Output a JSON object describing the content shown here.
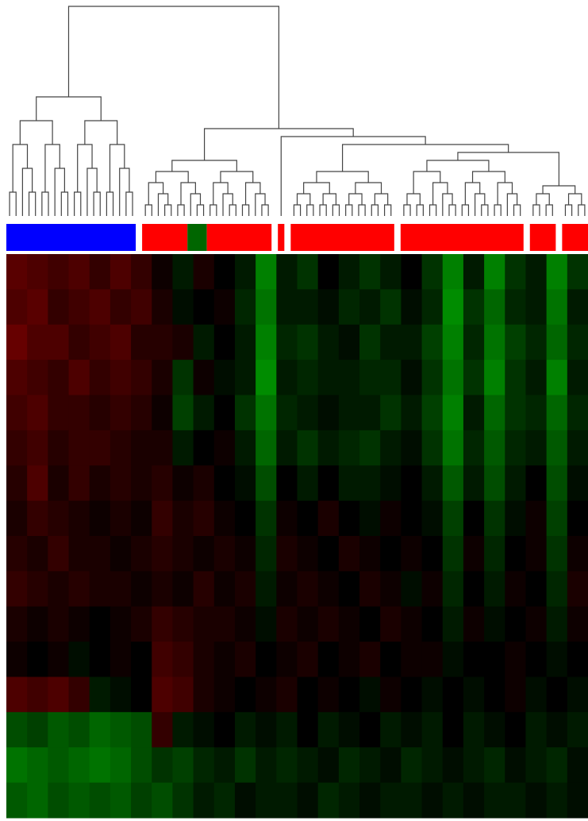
{
  "chart_data": {
    "type": "heatmap",
    "clusters": [
      {
        "segments": [
          {
            "color": "#0000ff",
            "n": 20
          }
        ]
      },
      {
        "segments": [
          {
            "color": "#ff0000",
            "n": 7
          },
          {
            "color": "#006600",
            "n": 3
          },
          {
            "color": "#ff0000",
            "n": 10
          }
        ]
      },
      {
        "segments": [
          {
            "color": "#ff0000",
            "n": 1
          }
        ]
      },
      {
        "segments": [
          {
            "color": "#ff0000",
            "n": 16
          }
        ]
      },
      {
        "segments": [
          {
            "color": "#ff0000",
            "n": 19
          }
        ]
      },
      {
        "segments": [
          {
            "color": "#ff0000",
            "n": 4
          }
        ]
      },
      {
        "segments": [
          {
            "color": "#ff0000",
            "n": 4
          }
        ]
      }
    ],
    "low_color": "#00ff00",
    "mid_color": "#000000",
    "high_color": "#ff0000",
    "vlim": [
      -1,
      1
    ],
    "values": [
      [
        0.35,
        0.3,
        0.25,
        0.3,
        0.2,
        0.3,
        0.2,
        0.05,
        -0.1,
        0.1,
        0,
        -0.1,
        -0.5,
        -0.1,
        -0.2,
        0,
        -0.1,
        -0.2,
        -0.1,
        0,
        -0.2,
        -0.5,
        -0.1,
        -0.5,
        -0.2,
        -0.1,
        -0.5,
        -0.2
      ],
      [
        0.3,
        0.35,
        0.2,
        0.25,
        0.3,
        0.2,
        0.25,
        0.1,
        -0.05,
        0,
        0.05,
        -0.15,
        -0.45,
        -0.1,
        -0.1,
        -0.05,
        -0.15,
        -0.1,
        -0.2,
        -0.05,
        -0.15,
        -0.55,
        -0.2,
        -0.4,
        -0.15,
        -0.1,
        -0.45,
        -0.1
      ],
      [
        0.4,
        0.3,
        0.3,
        0.2,
        0.25,
        0.3,
        0.15,
        0.15,
        0.1,
        -0.1,
        0,
        -0.1,
        -0.5,
        -0.15,
        -0.2,
        -0.1,
        -0.05,
        -0.2,
        -0.1,
        -0.1,
        -0.25,
        -0.5,
        -0.15,
        -0.45,
        -0.25,
        -0.15,
        -0.4,
        -0.15
      ],
      [
        0.3,
        0.25,
        0.2,
        0.3,
        0.2,
        0.25,
        0.2,
        0.1,
        -0.2,
        0.05,
        -0.05,
        -0.1,
        -0.55,
        -0.1,
        -0.15,
        -0.1,
        -0.1,
        -0.15,
        -0.15,
        -0.05,
        -0.2,
        -0.45,
        -0.2,
        -0.5,
        -0.2,
        -0.1,
        -0.5,
        -0.1
      ],
      [
        0.25,
        0.3,
        0.2,
        0.2,
        0.15,
        0.2,
        0.15,
        0.05,
        -0.25,
        -0.1,
        0,
        -0.2,
        -0.45,
        -0.15,
        -0.1,
        -0.05,
        -0.1,
        -0.1,
        -0.2,
        -0.1,
        -0.25,
        -0.5,
        -0.1,
        -0.4,
        -0.2,
        -0.15,
        -0.4,
        -0.15
      ],
      [
        0.2,
        0.25,
        0.15,
        0.2,
        0.2,
        0.15,
        0.1,
        0.1,
        -0.1,
        0,
        0.05,
        -0.1,
        -0.4,
        -0.1,
        -0.2,
        -0.1,
        -0.15,
        -0.2,
        -0.1,
        -0.05,
        -0.2,
        -0.45,
        -0.15,
        -0.35,
        -0.15,
        -0.1,
        -0.35,
        -0.1
      ],
      [
        0.15,
        0.3,
        0.1,
        0.2,
        0.1,
        0.15,
        0.1,
        0.15,
        0.05,
        0.1,
        0,
        -0.05,
        -0.3,
        0,
        -0.1,
        0,
        -0.1,
        -0.1,
        -0.05,
        0,
        -0.1,
        -0.35,
        -0.1,
        -0.3,
        -0.1,
        0,
        -0.3,
        -0.05
      ],
      [
        0.1,
        0.2,
        0.15,
        0.1,
        0.05,
        0.1,
        0.05,
        0.2,
        0.1,
        0.15,
        0.05,
        0,
        -0.2,
        0.05,
        0,
        0.1,
        0,
        -0.05,
        0.05,
        0,
        -0.05,
        -0.25,
        0,
        -0.2,
        -0.05,
        0.05,
        -0.25,
        0
      ],
      [
        0.15,
        0.1,
        0.2,
        0.1,
        0.1,
        0.05,
        0.1,
        0.15,
        0.1,
        0.05,
        0.1,
        0.05,
        -0.15,
        0.1,
        0.05,
        0,
        0.1,
        0.05,
        0,
        0.05,
        0,
        -0.2,
        0.05,
        -0.15,
        0,
        0.05,
        -0.2,
        0.05
      ],
      [
        0.2,
        0.15,
        0.1,
        0.15,
        0.1,
        0.1,
        0.05,
        0.1,
        0.05,
        0.15,
        0.05,
        0.1,
        -0.1,
        0.05,
        0.1,
        0.05,
        0,
        0.1,
        0.05,
        -0.05,
        0.05,
        -0.15,
        0,
        -0.1,
        0.05,
        0,
        -0.15,
        0.1
      ],
      [
        0.1,
        0.05,
        0.1,
        0.05,
        0,
        0.05,
        0.1,
        0.2,
        0.15,
        0.1,
        0.1,
        0.05,
        -0.05,
        0.1,
        0.05,
        0.1,
        0.05,
        0,
        0.1,
        0.05,
        0,
        -0.1,
        0.05,
        -0.05,
        0,
        0.05,
        -0.1,
        0.05
      ],
      [
        0.05,
        0,
        0.05,
        -0.05,
        0,
        0.05,
        0,
        0.25,
        0.2,
        0.1,
        0.05,
        0.1,
        0,
        0.05,
        0.1,
        0,
        0.05,
        0.1,
        0,
        0.05,
        0.05,
        -0.05,
        0,
        0,
        0.05,
        0,
        -0.05,
        0
      ],
      [
        0.3,
        0.25,
        0.3,
        0.2,
        -0.1,
        -0.05,
        0,
        0.3,
        0.25,
        0.1,
        0.05,
        0,
        0.05,
        0.1,
        0,
        0.05,
        0,
        -0.05,
        0.05,
        0,
        -0.05,
        0,
        -0.05,
        0,
        0.05,
        -0.05,
        0,
        -0.05
      ],
      [
        -0.3,
        -0.25,
        -0.35,
        -0.3,
        -0.4,
        -0.35,
        -0.3,
        0.2,
        -0.1,
        -0.05,
        0,
        -0.1,
        -0.05,
        -0.1,
        0,
        -0.1,
        -0.05,
        0,
        -0.1,
        -0.05,
        -0.1,
        0,
        -0.1,
        -0.05,
        0,
        -0.1,
        -0.05,
        -0.1
      ],
      [
        -0.45,
        -0.4,
        -0.35,
        -0.4,
        -0.45,
        -0.4,
        -0.3,
        -0.2,
        -0.25,
        -0.15,
        -0.1,
        -0.2,
        -0.1,
        -0.15,
        -0.1,
        -0.05,
        -0.15,
        -0.1,
        -0.05,
        -0.15,
        -0.1,
        -0.05,
        -0.1,
        -0.15,
        -0.05,
        -0.1,
        -0.15,
        -0.05
      ],
      [
        -0.35,
        -0.4,
        -0.3,
        -0.35,
        -0.3,
        -0.35,
        -0.25,
        -0.3,
        -0.2,
        -0.1,
        -0.15,
        -0.05,
        -0.1,
        -0.1,
        -0.05,
        -0.15,
        -0.1,
        -0.05,
        -0.1,
        -0.1,
        -0.05,
        -0.1,
        -0.05,
        -0.1,
        -0.1,
        -0.05,
        -0.1,
        -0.05
      ]
    ]
  }
}
